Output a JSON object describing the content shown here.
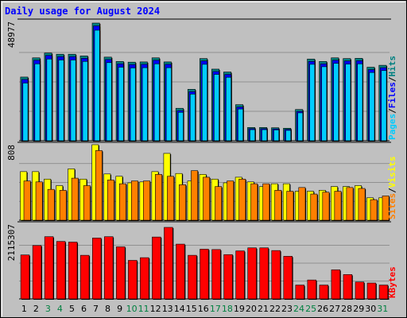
{
  "chart_data": {
    "type": "bar",
    "title": "Daily usage for August 2024",
    "colors": {
      "background": "#c0c0c0",
      "plot_background": "#c0c0c0",
      "title": "#0000ff",
      "pages": "#00ccff",
      "files": "#0000ff",
      "hits": "#008080",
      "visits": "#ffff00",
      "sites": "#ff8000",
      "kbytes": "#ff0000",
      "weekend_label": "#008040",
      "weekday_label": "#000000",
      "separator": "#000000"
    },
    "categories": [
      "1",
      "2",
      "3",
      "4",
      "5",
      "6",
      "7",
      "8",
      "9",
      "10",
      "11",
      "12",
      "13",
      "14",
      "15",
      "16",
      "17",
      "18",
      "19",
      "20",
      "21",
      "22",
      "23",
      "24",
      "25",
      "26",
      "27",
      "28",
      "29",
      "30",
      "31"
    ],
    "weekend_days": [
      "3",
      "4",
      "10",
      "11",
      "17",
      "18",
      "24",
      "25",
      "31"
    ],
    "panels": [
      {
        "name": "hits-files-pages",
        "y_max_label": "48977",
        "ymax": 48977,
        "legend": [
          "Pages",
          "/",
          "Files",
          "/",
          "Hits"
        ],
        "legend_colors": [
          "#00ccff",
          "#000000",
          "#0000ff",
          "#000000",
          "#008080"
        ],
        "series": [
          {
            "name": "Hits",
            "values": [
              26500,
              34500,
              36500,
              36000,
              36000,
              35300,
              48977,
              34800,
              33000,
              32700,
              32800,
              34500,
              32800,
              13500,
              21400,
              34200,
              29800,
              28600,
              15000,
              5500,
              5500,
              5400,
              5200,
              13000,
              34000,
              33000,
              34500,
              34200,
              34300,
              30600,
              31400
            ]
          },
          {
            "name": "Files",
            "values": [
              25500,
              33500,
              35500,
              35000,
              35000,
              34300,
              47800,
              33800,
              32000,
              31700,
              31800,
              33500,
              31800,
              12500,
              20400,
              33200,
              28800,
              27600,
              14000,
              5000,
              5000,
              4900,
              4700,
              12200,
              33000,
              32000,
              33500,
              33200,
              33300,
              29600,
              30400
            ]
          },
          {
            "name": "Pages",
            "values": [
              24000,
              32000,
              34000,
              33600,
              33600,
              33000,
              46000,
              32500,
              30600,
              30300,
              30400,
              32000,
              30400,
              11800,
              19400,
              31800,
              27600,
              26400,
              13200,
              4600,
              4600,
              4500,
              4300,
              11600,
              31800,
              30800,
              32200,
              31900,
              32000,
              28400,
              29200
            ]
          }
        ]
      },
      {
        "name": "visits-sites",
        "y_max_label": "808",
        "ymax": 808,
        "legend": [
          "Sites",
          "/",
          "Visits"
        ],
        "legend_colors": [
          "#ff8000",
          "#000000",
          "#ffff00"
        ],
        "series": [
          {
            "name": "Visits",
            "values": [
              520,
              520,
              440,
              370,
              550,
              440,
              808,
              495,
              470,
              400,
              410,
              520,
              715,
              500,
              420,
              490,
              440,
              400,
              460,
              410,
              360,
              390,
              390,
              310,
              310,
              320,
              360,
              360,
              370,
              240,
              240
            ]
          },
          {
            "name": "Sites",
            "values": [
              420,
              410,
              330,
              320,
              450,
              370,
              745,
              430,
              390,
              420,
              420,
              490,
              470,
              380,
              530,
              460,
              360,
              420,
              440,
              390,
              390,
              320,
              310,
              350,
              280,
              300,
              310,
              350,
              340,
              220,
              260
            ]
          }
        ]
      },
      {
        "name": "kbytes",
        "y_max_label": "2115307",
        "ymax": 2115307,
        "legend": [
          "KBytes"
        ],
        "legend_colors": [
          "#ff0000"
        ],
        "series": [
          {
            "name": "KBytes",
            "values": [
              1300000,
              1580000,
              1840000,
              1700000,
              1680000,
              1290000,
              1800000,
              1840000,
              1540000,
              1140000,
              1220000,
              1830000,
              2115307,
              1620000,
              1290000,
              1470000,
              1460000,
              1310000,
              1420000,
              1510000,
              1510000,
              1430000,
              1260000,
              410000,
              560000,
              410000,
              860000,
              720000,
              500000,
              470000,
              410000
            ]
          }
        ]
      }
    ]
  }
}
